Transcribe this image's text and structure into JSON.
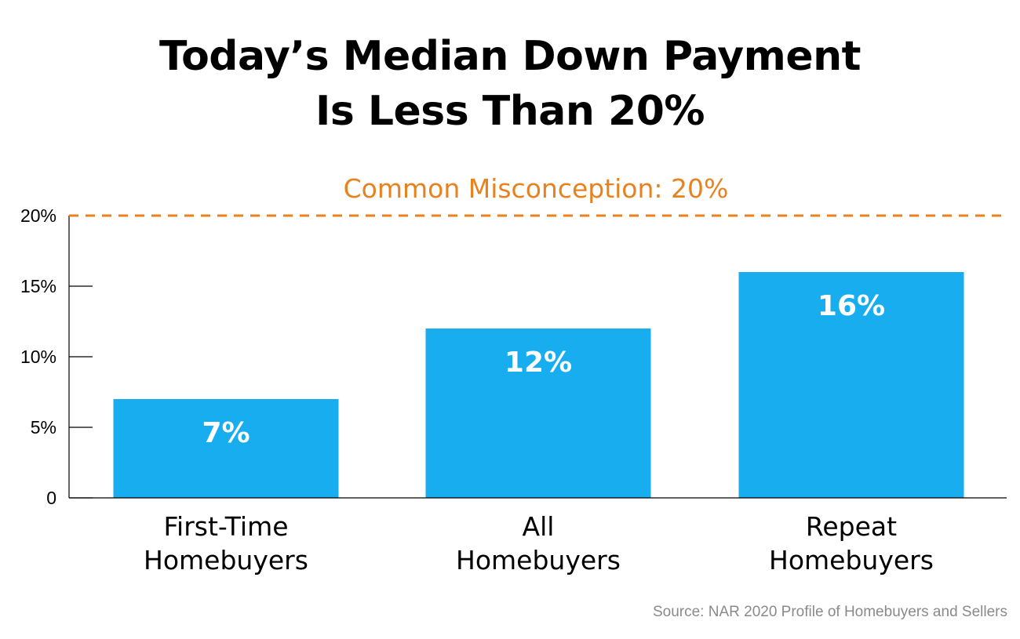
{
  "title_lines": [
    "Today’s Median Down Payment",
    "Is Less Than 20%"
  ],
  "source": "Source: NAR 2020 Profile of Homebuyers and Sellers",
  "colors": {
    "bar": "#17ADEE",
    "reference_line": "#E8821E",
    "axis": "#000000",
    "bar_label": "#ffffff",
    "source": "#8a8a8a"
  },
  "chart_data": {
    "type": "bar",
    "categories": [
      [
        "First-Time",
        "Homebuyers"
      ],
      [
        "All",
        "Homebuyers"
      ],
      [
        "Repeat",
        "Homebuyers"
      ]
    ],
    "values": [
      7,
      12,
      16
    ],
    "data_labels": [
      "7%",
      "12%",
      "16%"
    ],
    "yticks": [
      0,
      5,
      10,
      15,
      20
    ],
    "ytick_labels": [
      "0",
      "5%",
      "10%",
      "15%",
      "20%"
    ],
    "ylim": [
      0,
      20
    ],
    "grid": false,
    "reference_line": {
      "value": 20,
      "label": "Common Misconception: 20%",
      "style": "dashed"
    }
  }
}
